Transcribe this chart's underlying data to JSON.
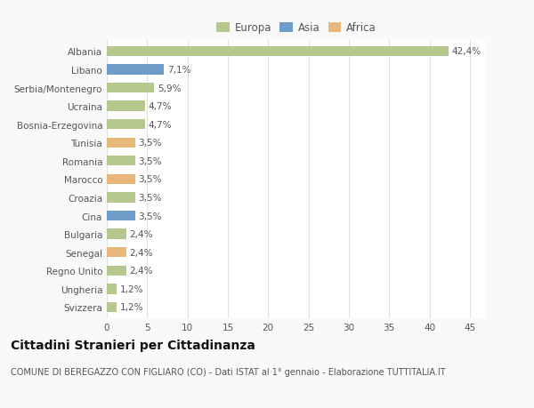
{
  "categories": [
    "Albania",
    "Libano",
    "Serbia/Montenegro",
    "Ucraina",
    "Bosnia-Erzegovina",
    "Tunisia",
    "Romania",
    "Marocco",
    "Croazia",
    "Cina",
    "Bulgaria",
    "Senegal",
    "Regno Unito",
    "Ungheria",
    "Svizzera"
  ],
  "values": [
    42.4,
    7.1,
    5.9,
    4.7,
    4.7,
    3.5,
    3.5,
    3.5,
    3.5,
    3.5,
    2.4,
    2.4,
    2.4,
    1.2,
    1.2
  ],
  "labels": [
    "42,4%",
    "7,1%",
    "5,9%",
    "4,7%",
    "4,7%",
    "3,5%",
    "3,5%",
    "3,5%",
    "3,5%",
    "3,5%",
    "2,4%",
    "2,4%",
    "2,4%",
    "1,2%",
    "1,2%"
  ],
  "colors": [
    "#b5c98e",
    "#6e9dc8",
    "#b5c98e",
    "#b5c98e",
    "#b5c98e",
    "#e8b87a",
    "#b5c98e",
    "#e8b87a",
    "#b5c98e",
    "#6e9dc8",
    "#b5c98e",
    "#e8b87a",
    "#b5c98e",
    "#b5c98e",
    "#b5c98e"
  ],
  "legend_colors": {
    "Europa": "#b5c98e",
    "Asia": "#6e9dc8",
    "Africa": "#e8b87a"
  },
  "xlim": [
    0,
    47
  ],
  "xticks": [
    0,
    5,
    10,
    15,
    20,
    25,
    30,
    35,
    40,
    45
  ],
  "title": "Cittadini Stranieri per Cittadinanza",
  "subtitle": "COMUNE DI BEREGAZZO CON FIGLIARO (CO) - Dati ISTAT al 1° gennaio - Elaborazione TUTTITALIA.IT",
  "bg_color": "#f9f9f9",
  "plot_bg_color": "#ffffff",
  "grid_color": "#e0e0e0",
  "label_fontsize": 7.5,
  "tick_fontsize": 7.5,
  "title_fontsize": 10,
  "subtitle_fontsize": 7
}
